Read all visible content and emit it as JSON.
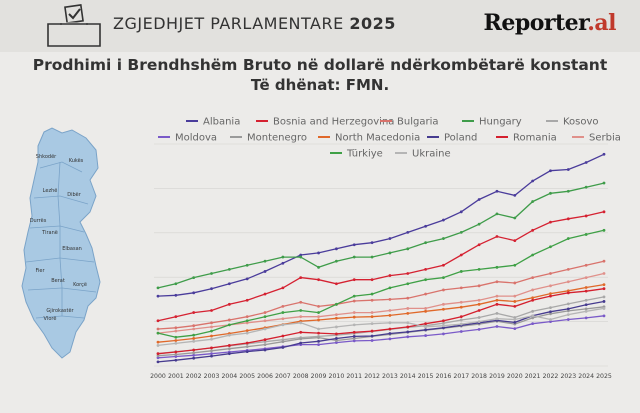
{
  "header": {
    "brand_prefix": "ZGJEDHJET PARLAMENTARE",
    "brand_year": "2025",
    "logo_main": "Reporter",
    "logo_suffix": ".al"
  },
  "map": {
    "cities": [
      "Shkodër",
      "Kukës",
      "Lezhë",
      "Dibër",
      "Durrës",
      "Tiranë",
      "Elbasan",
      "Fier",
      "Berat",
      "Korçë",
      "Gjirokastër",
      "Vlorë"
    ]
  },
  "chart_data": {
    "type": "line",
    "title": "Prodhimi i Brendhshëm Bruto në dollarë ndërkombëtarë konstant",
    "subtitle": "Të dhënat: FMN.",
    "x": [
      2000,
      2001,
      2002,
      2003,
      2004,
      2005,
      2006,
      2007,
      2008,
      2009,
      2010,
      2011,
      2012,
      2013,
      2014,
      2015,
      2016,
      2017,
      2018,
      2019,
      2020,
      2021,
      2022,
      2023,
      2024,
      2025
    ],
    "series": [
      {
        "name": "Albania",
        "color": "#4a3c9b",
        "values": [
          13,
          13.2,
          13.8,
          14.8,
          16,
          17.2,
          19,
          21,
          23,
          23.5,
          24.5,
          25.5,
          26,
          27,
          28.5,
          30,
          31.5,
          33.5,
          36.5,
          38.5,
          37.5,
          41,
          43.5,
          43.8,
          45.5,
          47.5
        ]
      },
      {
        "name": "Bosnia and Herzegovina",
        "color": "#d52131",
        "values": [
          7,
          8,
          9,
          9.5,
          11,
          12,
          13.5,
          15,
          17.5,
          17,
          16,
          17,
          17,
          18,
          18.5,
          19.5,
          20.5,
          23,
          25.5,
          27.5,
          26.5,
          29,
          31,
          31.8,
          32.5,
          33.5
        ]
      },
      {
        "name": "Bulgaria",
        "color": "#d9736c",
        "values": [
          5,
          5.3,
          5.8,
          6.5,
          7.2,
          8,
          9,
          10.5,
          11.5,
          10.5,
          11,
          11.8,
          12,
          12.2,
          12.5,
          13.5,
          14.5,
          15,
          15.5,
          16.5,
          16.2,
          17.5,
          18.5,
          19.5,
          20.5,
          21.5
        ]
      },
      {
        "name": "Hungary",
        "color": "#3f9c4a",
        "values": [
          15,
          16,
          17.5,
          18.5,
          19.5,
          20.5,
          21.5,
          22.5,
          22.5,
          20,
          21.5,
          22.5,
          22.5,
          23.5,
          24.5,
          26,
          27,
          28.5,
          30.5,
          33,
          32,
          36,
          38,
          38.5,
          39.5,
          40.5
        ]
      },
      {
        "name": "Kosovo",
        "color": "#a8a8a8",
        "values": [
          -1,
          -0.5,
          -0.1,
          0.4,
          0.9,
          1.4,
          1.9,
          2.4,
          2.9,
          3.2,
          3.5,
          3.9,
          4.4,
          4.9,
          5.4,
          5.8,
          6.4,
          7.2,
          7.8,
          8.8,
          7.8,
          9.3,
          10.2,
          11.1,
          12,
          12.8
        ]
      },
      {
        "name": "Moldova",
        "color": "#7a5ac8",
        "values": [
          -2,
          -1.7,
          -1.4,
          -1,
          -0.6,
          -0.2,
          0.2,
          0.7,
          1.2,
          1.2,
          1.7,
          2.1,
          2.2,
          2.6,
          3.1,
          3.4,
          3.8,
          4.4,
          4.9,
          5.6,
          5.1,
          6.3,
          6.8,
          7.3,
          7.7,
          8.2
        ]
      },
      {
        "name": "Montenegro",
        "color": "#9a9a9a",
        "values": [
          -1.5,
          -1.2,
          -0.8,
          -0.3,
          0.2,
          0.7,
          1.2,
          1.9,
          2.6,
          2.9,
          2.2,
          2.7,
          3.2,
          3.7,
          4.2,
          4.7,
          5.2,
          5.7,
          6.2,
          6.9,
          6.2,
          7.7,
          8.7,
          9.4,
          9.9,
          10.4
        ]
      },
      {
        "name": "North Macedonia",
        "color": "#e06829",
        "values": [
          1.8,
          2.2,
          2.7,
          3.3,
          3.9,
          4.6,
          5.3,
          6.1,
          6.9,
          7.2,
          7.6,
          7.9,
          8,
          8.3,
          8.8,
          9.3,
          9.8,
          10.3,
          11,
          12,
          11.7,
          12.6,
          13.6,
          14.3,
          15.1,
          15.8
        ]
      },
      {
        "name": "Poland",
        "color": "#463b8f",
        "values": [
          -3,
          -2.6,
          -2.1,
          -1.6,
          -1,
          -0.5,
          -0.1,
          0.5,
          1.6,
          2,
          2.7,
          3.2,
          3.3,
          3.9,
          4.3,
          4.8,
          5.3,
          5.9,
          6.5,
          7.1,
          6.6,
          8.2,
          9.2,
          9.9,
          10.9,
          11.7
        ]
      },
      {
        "name": "Romania",
        "color": "#d4202e",
        "values": [
          -1,
          -0.6,
          -0.1,
          0.4,
          1,
          1.6,
          2.4,
          3.3,
          4.2,
          4,
          3.8,
          4.2,
          4.5,
          5,
          5.5,
          6.3,
          7,
          8,
          9.5,
          11,
          10.5,
          12,
          13,
          13.8,
          14.2,
          14.8
        ]
      },
      {
        "name": "Serbia",
        "color": "#e0908a",
        "values": [
          4,
          4.5,
          5,
          5.5,
          6,
          6.5,
          7,
          7.5,
          8,
          8,
          8.5,
          9,
          9,
          9.5,
          10,
          10,
          11,
          11.5,
          12,
          13,
          13,
          14.5,
          15.5,
          16.5,
          17.5,
          18.5
        ]
      },
      {
        "name": "Türkiye",
        "color": "#3fa046",
        "values": [
          4,
          3,
          3.5,
          4.5,
          6,
          7,
          8,
          9,
          9.5,
          9,
          11,
          13,
          13.5,
          15,
          16,
          17,
          17.5,
          19,
          19.5,
          20,
          20.5,
          23,
          25,
          27,
          28,
          29
        ]
      },
      {
        "name": "Ukraine",
        "color": "#b5b5b5",
        "values": [
          1,
          1.5,
          2,
          2.5,
          3.5,
          4,
          5,
          6,
          6.5,
          5,
          5.5,
          6,
          6.3,
          6.5,
          6.5,
          5.5,
          5.8,
          6.2,
          6.8,
          7.5,
          7.3,
          8.2,
          7.3,
          8.5,
          9.3,
          10
        ]
      }
    ],
    "ylim": [
      -4,
      50
    ]
  }
}
